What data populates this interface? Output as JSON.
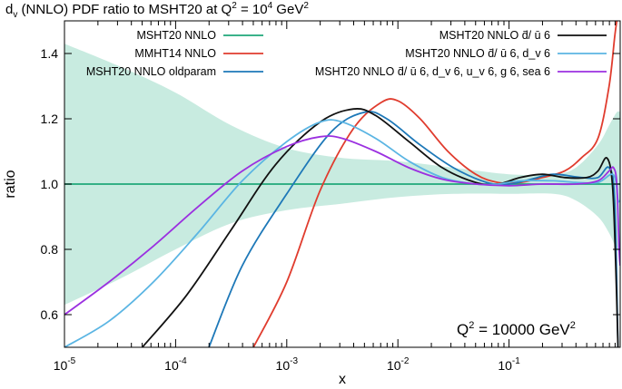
{
  "chart_data": {
    "type": "line",
    "title": "d_v (NNLO) PDF ratio to MSHT20 at Q^2 = 10^4 GeV^2",
    "title_parts": {
      "t1": "d",
      "t2": "v",
      "t3": " (NNLO) PDF ratio to MSHT20 at Q",
      "t4": "2",
      "t5": " = 10",
      "t6": "4",
      "t7": " GeV",
      "t8": "2"
    },
    "xlabel": "x",
    "ylabel": "ratio",
    "xscale": "log",
    "xlim": [
      1e-05,
      1
    ],
    "ylim": [
      0.5,
      1.5
    ],
    "x_ticks": [
      {
        "base": "10",
        "exp": "-5",
        "value": 1e-05
      },
      {
        "base": "10",
        "exp": "-4",
        "value": 0.0001
      },
      {
        "base": "10",
        "exp": "-3",
        "value": 0.001
      },
      {
        "base": "10",
        "exp": "-2",
        "value": 0.01
      },
      {
        "base": "10",
        "exp": "-1",
        "value": 0.1
      }
    ],
    "y_ticks": [
      "0.6",
      "0.8",
      "1.0",
      "1.2",
      "1.4"
    ],
    "y_tick_values": [
      0.6,
      0.8,
      1.0,
      1.2,
      1.4
    ],
    "annotation": {
      "text": "Q",
      "sup": "2",
      "rest": " = 10000 GeV",
      "sup2": "2"
    },
    "band": {
      "name": "MSHT20 NNLO uncertainty",
      "color": "#c8ebe0",
      "upper": [
        [
          -5,
          1.43
        ],
        [
          -4.5,
          1.36
        ],
        [
          -4,
          1.28
        ],
        [
          -3.5,
          1.18
        ],
        [
          -3,
          1.11
        ],
        [
          -2.5,
          1.08
        ],
        [
          -2,
          1.07
        ],
        [
          -1.5,
          1.05
        ],
        [
          -1,
          1.03
        ],
        [
          -0.6,
          1.03
        ],
        [
          -0.4,
          1.05
        ],
        [
          -0.2,
          1.12
        ],
        [
          -0.1,
          1.18
        ],
        [
          -0.03,
          1.22
        ],
        [
          0,
          1.22
        ]
      ],
      "lower": [
        [
          -5,
          0.63
        ],
        [
          -4.5,
          0.71
        ],
        [
          -4,
          0.8
        ],
        [
          -3.5,
          0.88
        ],
        [
          -3,
          0.92
        ],
        [
          -2.5,
          0.94
        ],
        [
          -2,
          0.96
        ],
        [
          -1.5,
          0.97
        ],
        [
          -1,
          0.97
        ],
        [
          -0.6,
          0.97
        ],
        [
          -0.4,
          0.95
        ],
        [
          -0.2,
          0.9
        ],
        [
          -0.1,
          0.85
        ],
        [
          -0.03,
          0.8
        ],
        [
          0,
          0.8
        ]
      ]
    },
    "legend_left": [
      {
        "label": "MSHT20 NNLO",
        "color": "#1fa77a"
      },
      {
        "label": "MMHT14 NNLO",
        "color": "#e03c2e"
      },
      {
        "label": "MSHT20 NNLO oldparam",
        "color": "#1d78b8"
      }
    ],
    "legend_right": [
      {
        "label": "MSHT20 NNLO d̄/ ū 6",
        "color": "#111111"
      },
      {
        "label": "MSHT20 NNLO d̄/ ū 6, d_v 6",
        "color": "#5bb5e3"
      },
      {
        "label": "MSHT20 NNLO d̄/ ū 6, d_v 6, u_v 6, g 6, sea 6",
        "color": "#9b30e0"
      }
    ],
    "series": [
      {
        "name": "MSHT20 NNLO",
        "color": "#1fa77a",
        "points": [
          [
            -5,
            1.0
          ],
          [
            0,
            1.0
          ]
        ]
      },
      {
        "name": "MMHT14 NNLO",
        "color": "#e03c2e",
        "points": [
          [
            -3.3,
            0.5
          ],
          [
            -3.0,
            0.7
          ],
          [
            -2.7,
            0.98
          ],
          [
            -2.4,
            1.17
          ],
          [
            -2.15,
            1.25
          ],
          [
            -2.0,
            1.255
          ],
          [
            -1.8,
            1.2
          ],
          [
            -1.55,
            1.1
          ],
          [
            -1.3,
            1.03
          ],
          [
            -1.1,
            1.005
          ],
          [
            -0.9,
            1.005
          ],
          [
            -0.7,
            1.02
          ],
          [
            -0.5,
            1.04
          ],
          [
            -0.35,
            1.08
          ],
          [
            -0.2,
            1.14
          ],
          [
            -0.1,
            1.3
          ],
          [
            -0.05,
            1.45
          ],
          [
            -0.03,
            1.5
          ]
        ]
      },
      {
        "name": "MSHT20 NNLO oldparam",
        "color": "#1d78b8",
        "points": [
          [
            -3.7,
            0.5
          ],
          [
            -3.4,
            0.75
          ],
          [
            -3.0,
            0.97
          ],
          [
            -2.6,
            1.16
          ],
          [
            -2.3,
            1.22
          ],
          [
            -2.1,
            1.2
          ],
          [
            -1.8,
            1.12
          ],
          [
            -1.5,
            1.05
          ],
          [
            -1.2,
            1.005
          ],
          [
            -1.0,
            1.0
          ],
          [
            -0.8,
            1.015
          ],
          [
            -0.6,
            1.03
          ],
          [
            -0.35,
            1.02
          ],
          [
            -0.2,
            1.02
          ],
          [
            -0.1,
            1.05
          ],
          [
            -0.05,
            0.95
          ],
          [
            -0.02,
            0.5
          ]
        ]
      },
      {
        "name": "MSHT20 NNLO d̄/ ū 6",
        "color": "#111111",
        "points": [
          [
            -4.3,
            0.5
          ],
          [
            -3.9,
            0.66
          ],
          [
            -3.5,
            0.86
          ],
          [
            -3.1,
            1.06
          ],
          [
            -2.7,
            1.19
          ],
          [
            -2.4,
            1.23
          ],
          [
            -2.2,
            1.21
          ],
          [
            -1.9,
            1.13
          ],
          [
            -1.6,
            1.05
          ],
          [
            -1.3,
            1.005
          ],
          [
            -1.1,
            1.0
          ],
          [
            -0.9,
            1.02
          ],
          [
            -0.7,
            1.03
          ],
          [
            -0.5,
            1.02
          ],
          [
            -0.3,
            1.02
          ],
          [
            -0.2,
            1.04
          ],
          [
            -0.12,
            1.08
          ],
          [
            -0.07,
            1.0
          ],
          [
            -0.04,
            0.75
          ],
          [
            -0.02,
            0.5
          ]
        ]
      },
      {
        "name": "MSHT20 NNLO d̄/ ū 6, d_v 6",
        "color": "#5bb5e3",
        "points": [
          [
            -5,
            0.5
          ],
          [
            -4.6,
            0.58
          ],
          [
            -4.2,
            0.7
          ],
          [
            -3.8,
            0.85
          ],
          [
            -3.4,
            1.01
          ],
          [
            -3.0,
            1.13
          ],
          [
            -2.7,
            1.19
          ],
          [
            -2.5,
            1.19
          ],
          [
            -2.2,
            1.14
          ],
          [
            -1.9,
            1.07
          ],
          [
            -1.6,
            1.02
          ],
          [
            -1.3,
            1.0
          ],
          [
            -1.1,
            1.0
          ],
          [
            -0.9,
            1.01
          ],
          [
            -0.6,
            1.01
          ],
          [
            -0.4,
            1.005
          ],
          [
            -0.2,
            1.005
          ],
          [
            -0.08,
            1.03
          ],
          [
            -0.04,
            1.01
          ],
          [
            -0.02,
            0.95
          ],
          [
            0,
            0.95
          ]
        ]
      },
      {
        "name": "MSHT20 NNLO d̄/ ū 6, d_v 6, u_v 6, g 6, sea 6",
        "color": "#9b30e0",
        "points": [
          [
            -5,
            0.6
          ],
          [
            -4.6,
            0.7
          ],
          [
            -4.2,
            0.81
          ],
          [
            -3.8,
            0.93
          ],
          [
            -3.4,
            1.04
          ],
          [
            -3.0,
            1.115
          ],
          [
            -2.7,
            1.145
          ],
          [
            -2.5,
            1.14
          ],
          [
            -2.2,
            1.1
          ],
          [
            -1.9,
            1.05
          ],
          [
            -1.6,
            1.015
          ],
          [
            -1.3,
            1.0
          ],
          [
            -1.0,
            0.995
          ],
          [
            -0.7,
            1.0
          ],
          [
            -0.4,
            1.0
          ],
          [
            -0.2,
            1.01
          ],
          [
            -0.1,
            1.04
          ],
          [
            -0.06,
            1.05
          ],
          [
            -0.03,
            1.0
          ],
          [
            -0.01,
            0.8
          ],
          [
            0,
            0.75
          ]
        ]
      }
    ]
  }
}
